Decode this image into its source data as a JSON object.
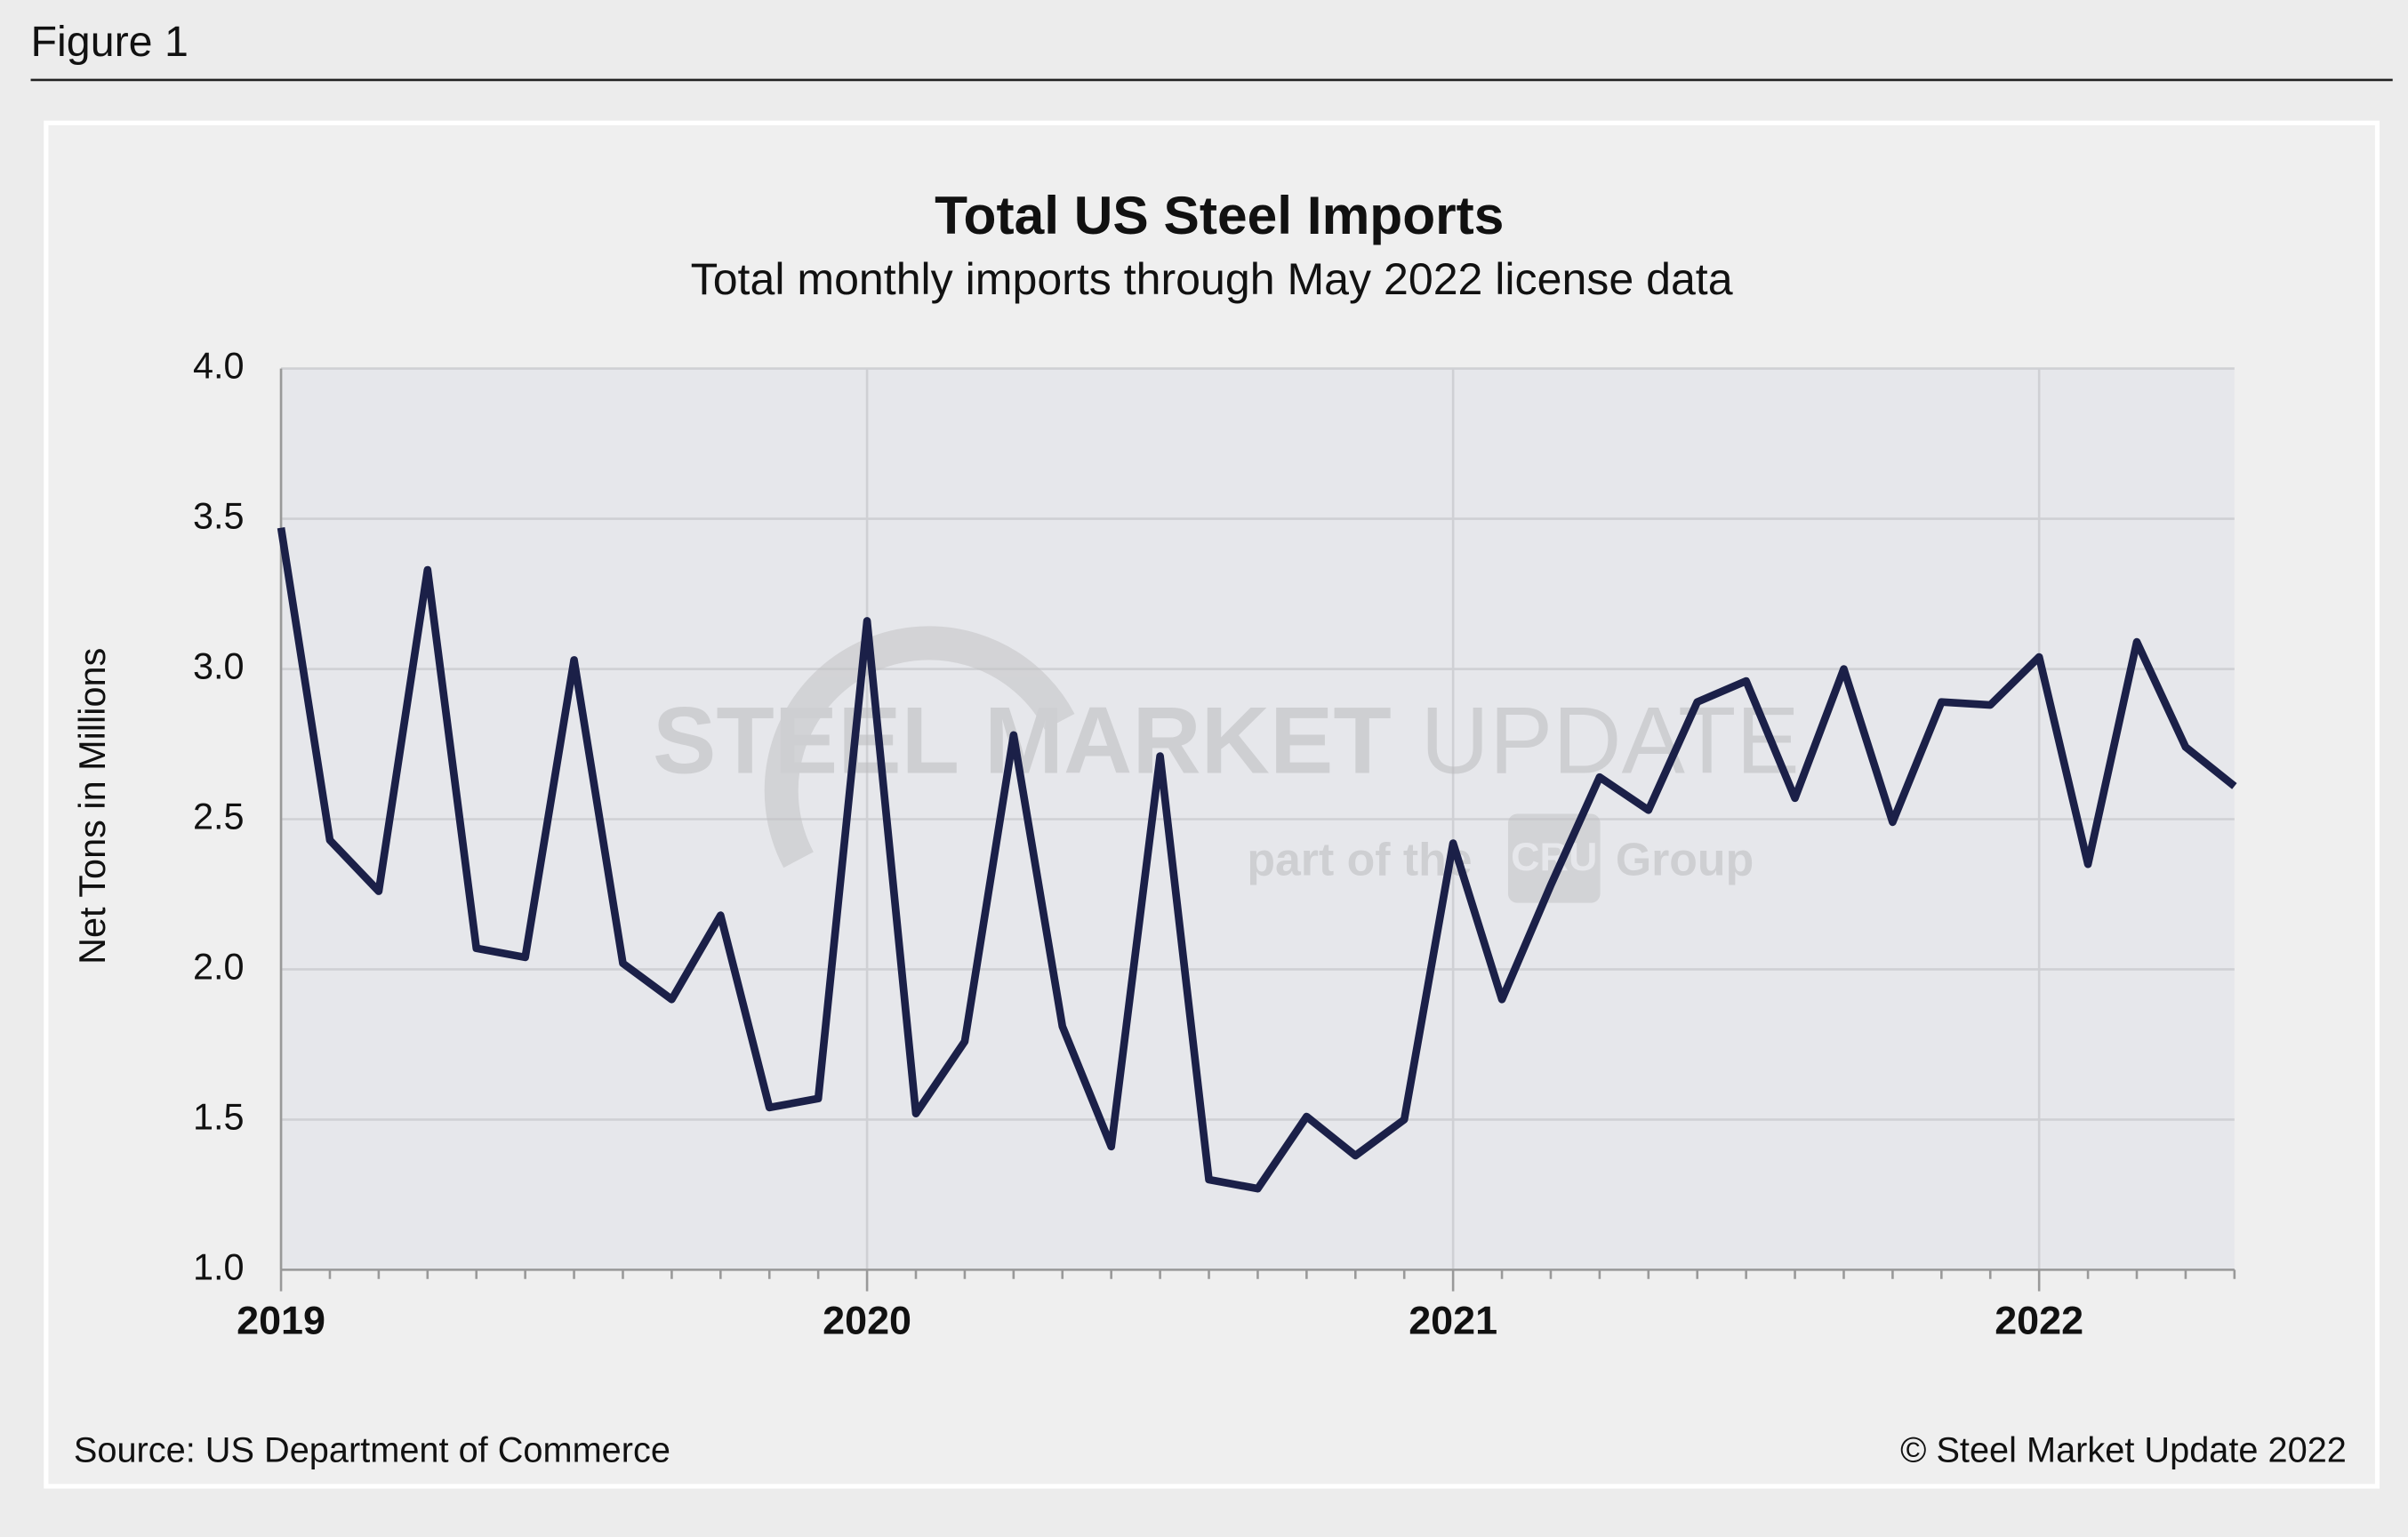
{
  "figure_label": "Figure 1",
  "chart_data": {
    "type": "line",
    "title": "Total US Steel Imports",
    "subtitle": "Total monthly imports through May 2022 license data",
    "y_label": "Net Tons in Millions",
    "source": "Source: US Department of Commerce",
    "copyright": "© Steel Market Update 2022",
    "watermark": {
      "brand": "STEEL MARKET",
      "brand_light": "UPDATE",
      "tag": "part of the",
      "logo": "CRU",
      "group": "Group"
    },
    "categories": [
      "2019",
      null,
      null,
      null,
      null,
      null,
      null,
      null,
      null,
      null,
      null,
      null,
      "2020",
      null,
      null,
      null,
      null,
      null,
      null,
      null,
      null,
      null,
      null,
      null,
      "2021",
      null,
      null,
      null,
      null,
      null,
      null,
      null,
      null,
      null,
      null,
      null,
      "2022",
      null,
      null,
      null,
      null
    ],
    "series": [
      {
        "name": "Total US Steel Imports",
        "color": "#1b2048",
        "values": [
          3.47,
          2.43,
          2.26,
          3.33,
          2.07,
          2.04,
          3.03,
          2.02,
          1.9,
          2.18,
          1.54,
          1.57,
          3.16,
          1.52,
          1.76,
          2.78,
          1.81,
          1.41,
          2.71,
          1.3,
          1.27,
          1.51,
          1.38,
          1.5,
          2.42,
          1.9,
          2.28,
          2.64,
          2.53,
          2.89,
          2.96,
          2.57,
          3.0,
          2.49,
          2.89,
          2.88,
          3.04,
          2.35,
          3.09,
          2.74,
          2.61
        ]
      }
    ],
    "ylim": [
      1,
      4
    ],
    "yticks": [
      {
        "value": 1,
        "label": "1.0"
      },
      {
        "value": 1.5,
        "label": "1.5"
      },
      {
        "value": 2,
        "label": "2.0"
      },
      {
        "value": 2.5,
        "label": "2.5"
      },
      {
        "value": 3,
        "label": "3.0"
      },
      {
        "value": 3.5,
        "label": "3.5"
      },
      {
        "value": 4,
        "label": "4.0"
      }
    ],
    "grid": true
  }
}
